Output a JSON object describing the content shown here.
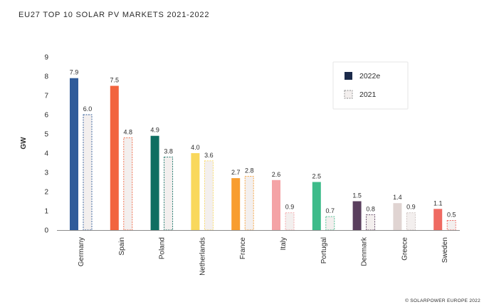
{
  "chart_data": {
    "type": "bar",
    "title": "EU27 TOP 10 SOLAR PV MARKETS 2021-2022",
    "ylabel": "GW",
    "xlabel": "",
    "ylim": [
      0,
      9
    ],
    "yticks": [
      "0",
      "1",
      "2",
      "3",
      "4",
      "5",
      "6",
      "7",
      "8",
      "9"
    ],
    "categories": [
      "Germany",
      "Spain",
      "Poland",
      "Netherlands",
      "France",
      "Italy",
      "Portugal",
      "Denmark",
      "Greece",
      "Sweden"
    ],
    "series": [
      {
        "name": "2022e",
        "values": [
          7.9,
          7.5,
          4.9,
          4.0,
          2.7,
          2.6,
          2.5,
          1.5,
          1.4,
          1.1
        ],
        "labels": [
          "7.9",
          "7.5",
          "4.9",
          "4.0",
          "2.7",
          "2.6",
          "2.5",
          "1.5",
          "1.4",
          "1.1"
        ],
        "colors": [
          "#2f5b9a",
          "#f2643e",
          "#0f6e61",
          "#f9d85c",
          "#f89d2f",
          "#f4a3a6",
          "#3dbb8a",
          "#5a3f5e",
          "#e0d4d2",
          "#ef6a62"
        ]
      },
      {
        "name": "2021",
        "values": [
          6.0,
          4.8,
          3.8,
          3.6,
          2.8,
          0.9,
          0.7,
          0.8,
          0.9,
          0.5
        ],
        "labels": [
          "6.0",
          "4.8",
          "3.8",
          "3.6",
          "2.8",
          "0.9",
          "0.7",
          "0.8",
          "0.9",
          "0.5"
        ],
        "colors": [
          "#2f5b9a",
          "#f2643e",
          "#0f6e61",
          "#f9d85c",
          "#f89d2f",
          "#f4a3a6",
          "#3dbb8a",
          "#5a3f5e",
          "#c9bdbb",
          "#ef6a62"
        ]
      }
    ],
    "legend": {
      "placement": "top-right",
      "items": [
        {
          "label": "2022e",
          "color": "#1b2a4a",
          "style": "solid"
        },
        {
          "label": "2021",
          "color": "#8a8a8a",
          "style": "dashed"
        }
      ]
    },
    "grid": false
  },
  "footer": {
    "copyright": "© SOLARPOWER EUROPE 2022"
  }
}
